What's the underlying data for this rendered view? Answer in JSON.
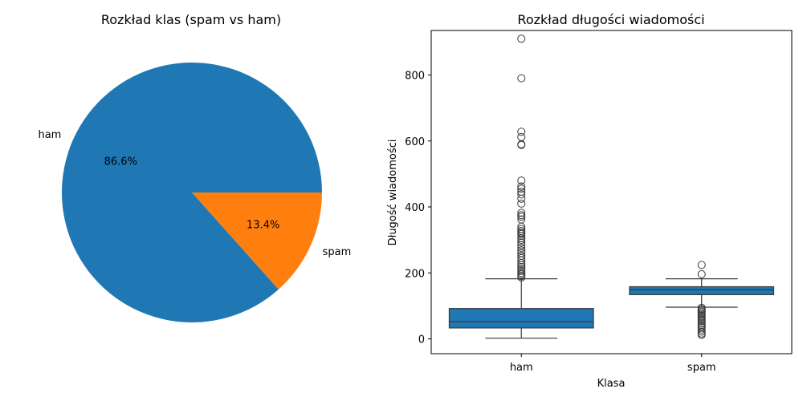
{
  "chart_data": [
    {
      "type": "pie",
      "title": "Rozkład klas (spam vs ham)",
      "labels": [
        "ham",
        "spam"
      ],
      "values": [
        86.6,
        13.4
      ],
      "autopct": [
        "86.6%",
        "13.4%"
      ],
      "colors": [
        "#1f77b4",
        "#ff7f0e"
      ]
    },
    {
      "type": "box",
      "title": "Rozkład długości wiadomości",
      "xlabel": "Klasa",
      "ylabel": "Długość wiadomości",
      "categories": [
        "ham",
        "spam"
      ],
      "ylim": [
        -45,
        935
      ],
      "yticks": [
        0,
        200,
        400,
        600,
        800
      ],
      "grid": false,
      "box_color": "#1f77b4",
      "boxes": [
        {
          "category": "ham",
          "whislo": 2,
          "q1": 33,
          "median": 52,
          "q3": 92,
          "whishi": 182,
          "fliers": [
            910,
            790,
            628,
            612,
            590,
            588,
            480,
            462,
            455,
            446,
            438,
            425,
            410,
            382,
            375,
            370,
            362,
            340,
            333,
            327,
            322,
            318,
            312,
            305,
            300,
            292,
            284,
            276,
            268,
            260,
            252,
            245,
            238,
            230,
            224,
            218,
            212,
            206,
            200,
            195,
            190,
            186
          ]
        },
        {
          "category": "spam",
          "whislo": 96,
          "q1": 134,
          "median": 149,
          "q3": 158,
          "whishi": 182,
          "fliers": [
            224,
            196,
            94,
            90,
            86,
            82,
            78,
            74,
            70,
            66,
            62,
            58,
            54,
            48,
            42,
            38,
            34,
            28,
            22,
            16,
            12
          ]
        }
      ]
    }
  ]
}
